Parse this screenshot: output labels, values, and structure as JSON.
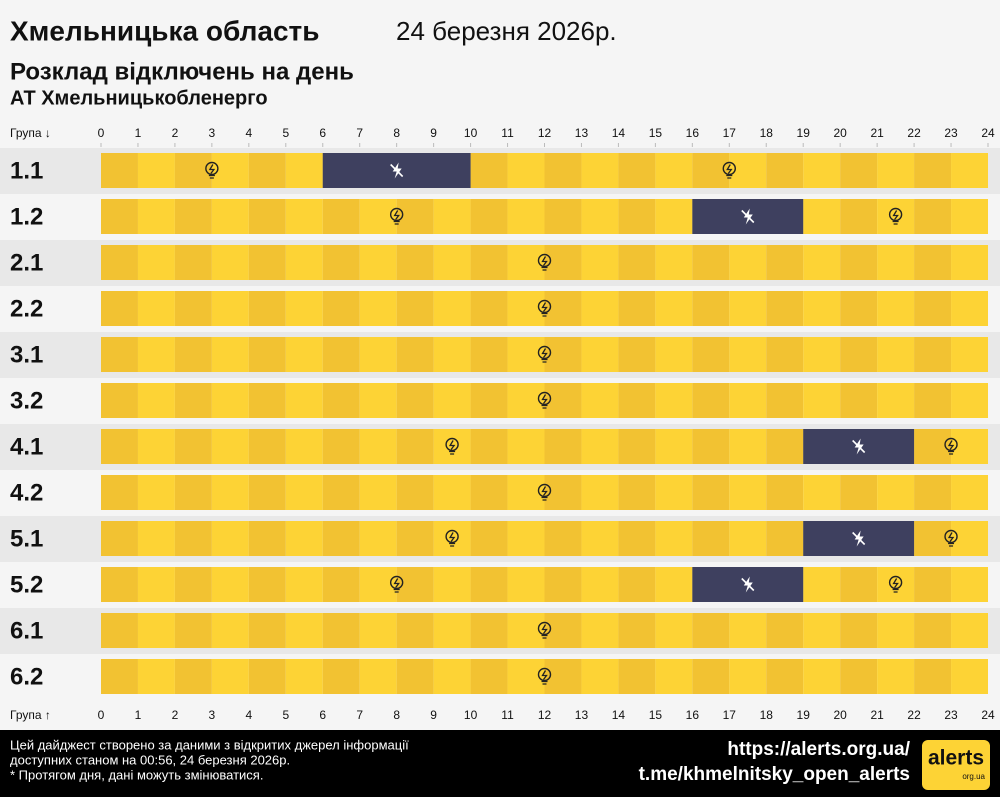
{
  "chart_data": {
    "type": "timeline",
    "title": "Хмельницька область",
    "date": "24 березня 2026р.",
    "subtitle": "Розклад відключень на день",
    "company": "АТ Хмельницькобленерго",
    "group_label_top": "Група ↓",
    "group_label_bottom": "Група ↑",
    "xlim": [
      0,
      24
    ],
    "xticks": [
      0,
      1,
      2,
      3,
      4,
      5,
      6,
      7,
      8,
      9,
      10,
      11,
      12,
      13,
      14,
      15,
      16,
      17,
      18,
      19,
      20,
      21,
      22,
      23,
      24
    ],
    "colors": {
      "on": "#fdd335",
      "on_alt": "#f2c232",
      "off": "#3e405f"
    },
    "categories": [
      "1.1",
      "1.2",
      "2.1",
      "2.2",
      "3.1",
      "3.2",
      "4.1",
      "4.2",
      "5.1",
      "5.2",
      "6.1",
      "6.2"
    ],
    "outages": [
      [
        [
          6,
          10
        ]
      ],
      [
        [
          16,
          19
        ]
      ],
      [],
      [],
      [],
      [],
      [
        [
          19,
          22
        ]
      ],
      [],
      [
        [
          19,
          22
        ]
      ],
      [
        [
          16,
          19
        ]
      ],
      [],
      []
    ],
    "footer": {
      "note_lines": [
        "Цей дайджест створено за даними з відкритих джерел інформації",
        "доступних станом на 00:56, 24 березня 2026р.",
        "* Протягом дня, дані можуть змінюватися."
      ],
      "links": [
        "https://alerts.org.ua/",
        "t.me/khmelnitsky_open_alerts"
      ],
      "logo": "alerts",
      "logo_sub": "org.ua"
    }
  }
}
